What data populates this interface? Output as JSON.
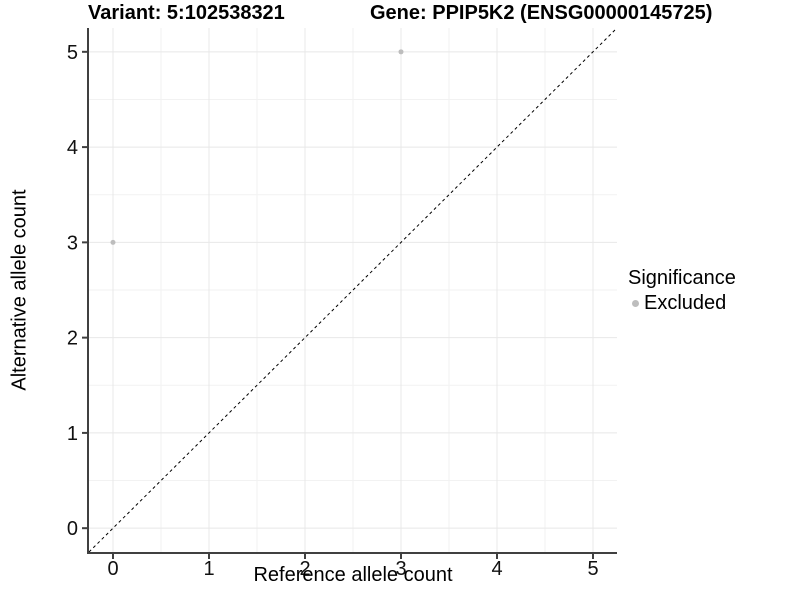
{
  "chart_data": {
    "type": "scatter",
    "title_left": "Variant: 5:102538321",
    "title_right": "Gene: PPIP5K2 (ENSG00000145725)",
    "xlabel": "Reference allele count",
    "ylabel": "Alternative allele count",
    "xlim": [
      -0.25,
      5.25
    ],
    "ylim": [
      -0.25,
      5.25
    ],
    "xticks": [
      0,
      1,
      2,
      3,
      4,
      5
    ],
    "yticks": [
      0,
      1,
      2,
      3,
      4,
      5
    ],
    "grid": "major+minor",
    "series": [
      {
        "name": "Excluded",
        "color": "#bdbdbd",
        "point_radius": 2.5,
        "points": [
          {
            "x": 0,
            "y": 3
          },
          {
            "x": 3,
            "y": 5
          }
        ]
      }
    ],
    "reference_line": {
      "type": "identity",
      "style": "dashed",
      "color": "#000000"
    },
    "legend": {
      "title": "Significance",
      "position": "right",
      "entries": [
        {
          "label": "Excluded",
          "color": "#bdbdbd"
        }
      ]
    }
  },
  "colors": {
    "background": "#ffffff",
    "grid_major": "#e8e8e8",
    "grid_minor": "#f2f2f2",
    "axis_line": "#404040",
    "tick_text": "#111111",
    "title_text": "#000000"
  }
}
